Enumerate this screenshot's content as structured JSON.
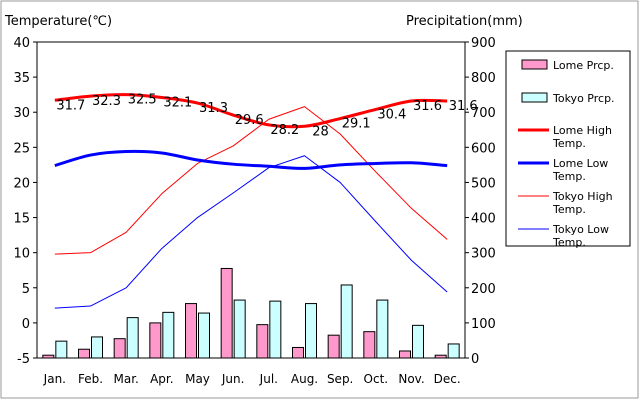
{
  "chart_data": {
    "type": "bar+line",
    "title": "",
    "ylabel_left": "Temperature(℃)",
    "ylabel_right": "Precipitation(mm)",
    "ylim_left": [
      -5,
      40
    ],
    "ylim_right": [
      0,
      900
    ],
    "yticks_left": [
      "40",
      "35",
      "30",
      "25",
      "20",
      "15",
      "10",
      "5",
      "0",
      "-5"
    ],
    "yticks_right": [
      "900",
      "800",
      "700",
      "600",
      "500",
      "400",
      "300",
      "200",
      "100",
      "0"
    ],
    "categories": [
      "Jan.",
      "Feb.",
      "Mar.",
      "Apr.",
      "May",
      "Jun.",
      "Jul.",
      "Aug.",
      "Sep.",
      "Oct.",
      "Nov.",
      "Dec."
    ],
    "grid": false,
    "legend_position": "right",
    "bar_series": [
      {
        "name": "Lome Prcp.",
        "color": "#ff99cc",
        "values": [
          8,
          25,
          55,
          100,
          155,
          255,
          95,
          30,
          65,
          75,
          20,
          8
        ]
      },
      {
        "name": "Tokyo Prcp.",
        "color": "#ccffff",
        "values": [
          48,
          60,
          115,
          130,
          128,
          165,
          162,
          155,
          208,
          165,
          93,
          40
        ]
      }
    ],
    "line_series": [
      {
        "name": "Lome High Temp.",
        "color": "#ff0000",
        "width": 3,
        "values": [
          31.7,
          32.3,
          32.5,
          32.1,
          31.3,
          29.6,
          28.2,
          28.0,
          29.1,
          30.4,
          31.6,
          31.6
        ]
      },
      {
        "name": "Lome Low Temp.",
        "color": "#0000ff",
        "width": 3,
        "values": [
          22.4,
          23.9,
          24.4,
          24.2,
          23.2,
          22.6,
          22.3,
          22.0,
          22.5,
          22.7,
          22.8,
          22.4
        ]
      },
      {
        "name": "Tokyo High Temp.",
        "color": "#ff0000",
        "width": 1,
        "values": [
          9.8,
          10.0,
          12.9,
          18.4,
          22.7,
          25.2,
          29.0,
          30.8,
          26.9,
          21.5,
          16.3,
          11.9
        ]
      },
      {
        "name": "Tokyo Low Temp.",
        "color": "#0000ff",
        "width": 1,
        "values": [
          2.1,
          2.4,
          5.0,
          10.6,
          15.0,
          18.5,
          22.1,
          23.8,
          20.0,
          14.4,
          8.9,
          4.4
        ]
      }
    ],
    "data_labels": [
      "31.7",
      "32.3",
      "32.5",
      "32.1",
      "31.3",
      "29.6",
      "28.2",
      "28",
      "29.1",
      "30.4",
      "31.6",
      "31.6"
    ]
  }
}
